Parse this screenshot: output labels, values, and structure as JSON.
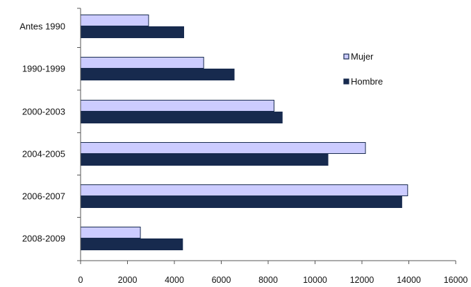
{
  "chart_data": {
    "type": "bar",
    "orientation": "horizontal",
    "title": "",
    "xlabel": "",
    "ylabel": "",
    "categories": [
      "Antes 1990",
      "1990-1999",
      "2000-2003",
      "2004-2005",
      "2006-2007",
      "2008-2009"
    ],
    "series": [
      {
        "name": "Mujer",
        "color": "#ccccff",
        "values": [
          2900,
          5250,
          8250,
          12150,
          13950,
          2550
        ]
      },
      {
        "name": "Hombre",
        "color": "#172a4e",
        "values": [
          4400,
          6550,
          8600,
          10550,
          13700,
          4350
        ]
      }
    ],
    "xlim": [
      0,
      16000
    ],
    "xticks": [
      0,
      2000,
      4000,
      6000,
      8000,
      10000,
      12000,
      14000,
      16000
    ],
    "tick_labels": [
      "0",
      "2000",
      "4000",
      "6000",
      "8000",
      "10000",
      "12000",
      "14000",
      "16000"
    ],
    "grid": false,
    "legend": {
      "position": "right",
      "entries": [
        "Mujer",
        "Hombre"
      ]
    }
  }
}
